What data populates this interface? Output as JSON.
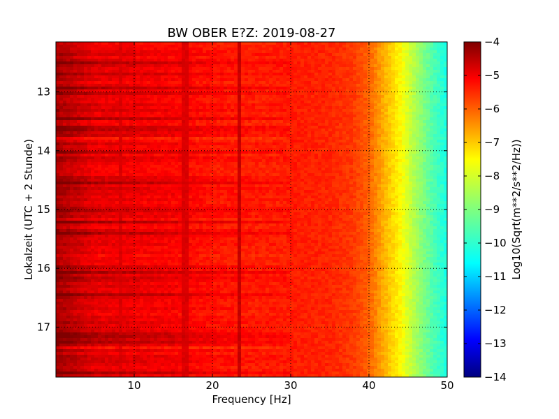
{
  "chart_data": {
    "type": "heatmap",
    "title": "BW OBER E?Z: 2019-08-27",
    "xlabel": "Frequency [Hz]",
    "ylabel": "Lokalzeit (UTC + 2 Stunde)",
    "xlim": [
      0,
      50
    ],
    "ylim": [
      17.85,
      12.15
    ],
    "xticks": [
      10,
      20,
      30,
      40,
      50
    ],
    "yticks": [
      13,
      14,
      15,
      16,
      17
    ],
    "grid": true,
    "colormap": "jet",
    "colorbar": {
      "label": "Log10(Sqrt(m**2/s**2/Hz))",
      "range": [
        -14,
        -4
      ],
      "ticks": [
        -4,
        -5,
        -6,
        -7,
        -8,
        -9,
        -10,
        -11,
        -12,
        -13,
        -14
      ]
    },
    "spectral_profile": {
      "frequency_hz": [
        0,
        5,
        10,
        15,
        20,
        25,
        30,
        35,
        38,
        40,
        42,
        44,
        46,
        48,
        50
      ],
      "log10_amplitude": [
        -4.4,
        -5.0,
        -5.1,
        -5.2,
        -5.4,
        -5.5,
        -5.5,
        -5.6,
        -5.8,
        -6.2,
        -7.0,
        -7.7,
        -8.6,
        -9.4,
        -10.0
      ]
    },
    "notable_lines": [
      {
        "frequency_hz": 23.3,
        "log10_amplitude": -4.7
      },
      {
        "frequency_hz": 16.5,
        "log10_amplitude": -4.9
      },
      {
        "frequency_hz": 8.2,
        "log10_amplitude": -4.9
      }
    ],
    "notable_times": [
      {
        "time": 15.2,
        "log10_amplitude": -4.3
      },
      {
        "time": 14.55,
        "log10_amplitude": -4.6
      },
      {
        "time": 16.45,
        "log10_amplitude": -4.5
      }
    ]
  }
}
